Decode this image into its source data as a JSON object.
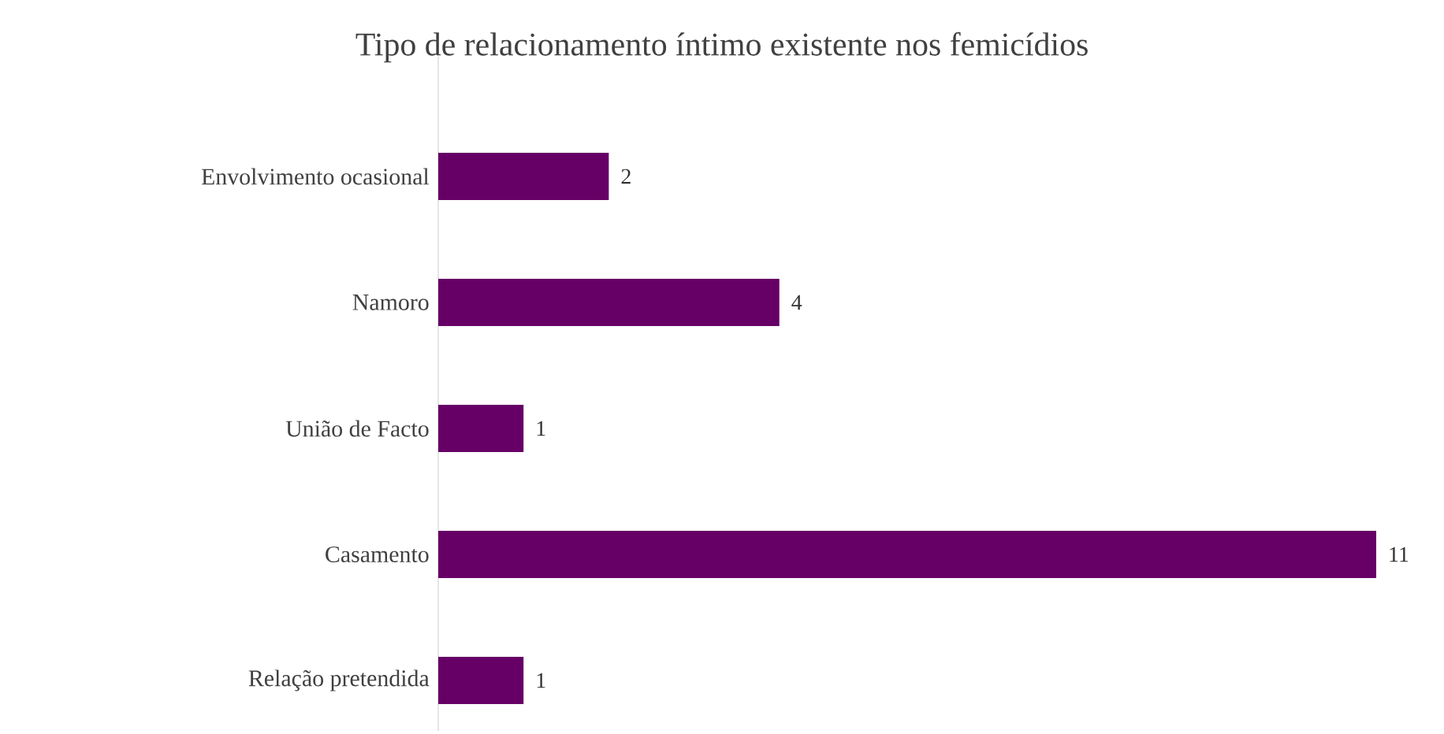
{
  "chart_data": {
    "type": "bar",
    "orientation": "horizontal",
    "title": "Tipo de relacionamento íntimo existente nos femicídios",
    "categories": [
      "Envolvimento ocasional",
      "Namoro",
      "União de Facto",
      "Casamento",
      "Relação pretendida"
    ],
    "values": [
      2,
      4,
      1,
      11,
      1
    ],
    "color": "#660066",
    "data_labels": true
  }
}
